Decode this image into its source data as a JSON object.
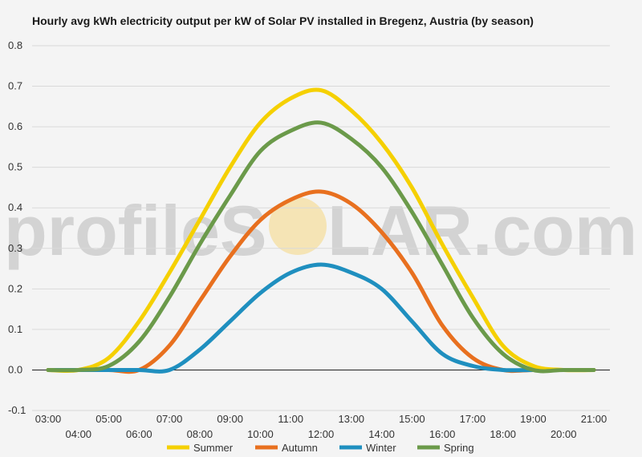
{
  "chart_data": {
    "type": "line",
    "title": "Hourly avg kWh electricity output per kW of Solar PV installed in Bregenz, Austria (by season)",
    "xlabel": "",
    "ylabel": "",
    "x": [
      "03:00",
      "04:00",
      "05:00",
      "06:00",
      "07:00",
      "08:00",
      "09:00",
      "10:00",
      "11:00",
      "12:00",
      "13:00",
      "14:00",
      "15:00",
      "16:00",
      "17:00",
      "18:00",
      "19:00",
      "20:00",
      "21:00"
    ],
    "x_tick_labels": [
      "03:00",
      "04:00",
      "05:00",
      "06:00",
      "07:00",
      "08:00",
      "09:00",
      "10:00",
      "11:00",
      "12:00",
      "13:00",
      "14:00",
      "15:00",
      "16:00",
      "17:00",
      "18:00",
      "19:00",
      "20:00",
      "21:00"
    ],
    "y_tick_labels": [
      "0.8",
      "0.7",
      "0.6",
      "0.5",
      "0.4",
      "0.3",
      "0.2",
      "0.1",
      "0.0",
      "-0.1"
    ],
    "ylim": [
      -0.1,
      0.8
    ],
    "y_ticks": [
      -0.1,
      0.0,
      0.1,
      0.2,
      0.3,
      0.4,
      0.5,
      0.6,
      0.7,
      0.8
    ],
    "grid": true,
    "legend_position": "bottom",
    "series": [
      {
        "name": "Summer",
        "color": "#f5d000",
        "values": [
          0.0,
          0.0,
          0.03,
          0.12,
          0.24,
          0.37,
          0.5,
          0.61,
          0.67,
          0.69,
          0.64,
          0.56,
          0.45,
          0.31,
          0.18,
          0.06,
          0.01,
          0.0,
          0.0
        ]
      },
      {
        "name": "Autumn",
        "color": "#e8701f",
        "values": [
          0.0,
          0.0,
          0.0,
          0.0,
          0.06,
          0.17,
          0.28,
          0.37,
          0.42,
          0.44,
          0.41,
          0.34,
          0.24,
          0.11,
          0.03,
          0.0,
          0.0,
          0.0,
          0.0
        ]
      },
      {
        "name": "Winter",
        "color": "#1f8fbf",
        "values": [
          0.0,
          0.0,
          0.0,
          0.0,
          0.0,
          0.05,
          0.12,
          0.19,
          0.24,
          0.26,
          0.24,
          0.2,
          0.12,
          0.04,
          0.01,
          0.0,
          0.0,
          0.0,
          0.0
        ]
      },
      {
        "name": "Spring",
        "color": "#6b9a4a",
        "values": [
          0.0,
          0.0,
          0.01,
          0.07,
          0.18,
          0.31,
          0.43,
          0.54,
          0.59,
          0.61,
          0.57,
          0.5,
          0.39,
          0.26,
          0.13,
          0.04,
          0.0,
          0.0,
          0.0
        ]
      }
    ]
  },
  "watermark": {
    "text_before": "profileS",
    "text_after": "LAR.com",
    "sun_color": "#f5d98a"
  }
}
